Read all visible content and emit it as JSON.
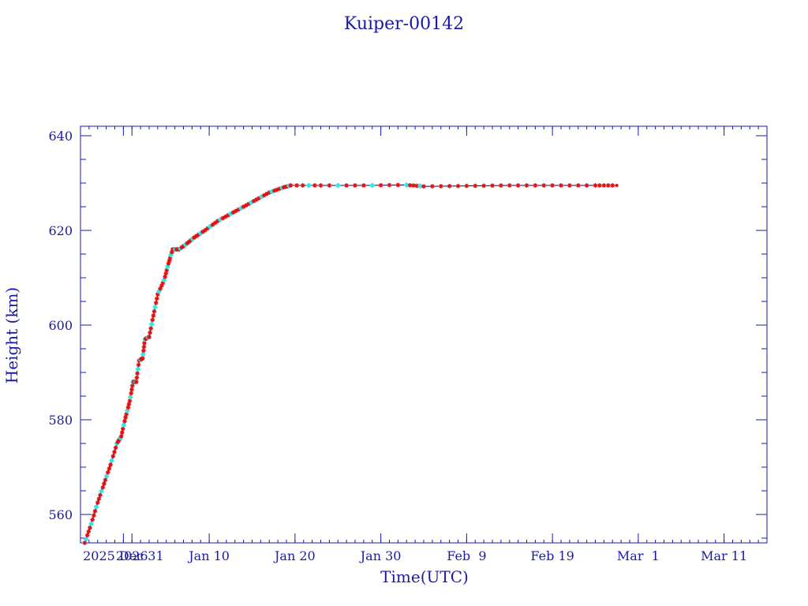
{
  "chart_data": {
    "type": "line",
    "title": "Kuiper-00142",
    "xlabel": "Time(UTC)",
    "ylabel": "Height (km)",
    "x_axis_type": "date",
    "xlim": [
      "2025-12-26",
      "2026-03-16"
    ],
    "ylim": [
      554,
      642
    ],
    "x_ticks": [
      "2025-12-31",
      "2026-01-01",
      "2026-01-10",
      "2026-01-20",
      "2026-01-30",
      "2026-02-09",
      "2026-02-19",
      "2026-03-01",
      "2026-03-11"
    ],
    "x_tick_labels": [
      "2025 Dec 31",
      "2026",
      "Jan 10",
      "Jan 20",
      "Jan 30",
      "Feb  9",
      "Feb 19",
      "Mar  1",
      "Mar 11"
    ],
    "y_ticks": [
      560,
      580,
      600,
      620,
      640
    ],
    "y_tick_labels": [
      "560",
      "580",
      "600",
      "620",
      "640"
    ],
    "y_minor_step": 5,
    "grid": false,
    "colors": {
      "axes": "#1a1aa8",
      "line": "#00007a",
      "marker_primary": "#e01010",
      "marker_secondary": "#33e6e6"
    },
    "series": [
      {
        "values": [
          [
            "2025-12-26T12:00",
            554.0
          ],
          [
            "2025-12-27T06:00",
            558.0
          ],
          [
            "2025-12-28T00:00",
            562.5
          ],
          [
            "2025-12-28T18:00",
            566.5
          ],
          [
            "2025-12-29T12:00",
            570.5
          ],
          [
            "2025-12-30T06:00",
            575.0
          ],
          [
            "2025-12-30T18:00",
            576.5
          ],
          [
            "2025-12-31T06:00",
            580.5
          ],
          [
            "2025-12-31T18:00",
            584.0
          ],
          [
            "2026-01-01T03:00",
            588.0
          ],
          [
            "2026-01-01T12:00",
            588.0
          ],
          [
            "2026-01-01T20:00",
            592.5
          ],
          [
            "2026-01-02T06:00",
            593.0
          ],
          [
            "2026-01-02T12:00",
            597.0
          ],
          [
            "2026-01-03T00:00",
            597.5
          ],
          [
            "2026-01-03T12:00",
            602.0
          ],
          [
            "2026-01-04T00:00",
            606.5
          ],
          [
            "2026-01-04T18:00",
            609.5
          ],
          [
            "2026-01-05T06:00",
            613.0
          ],
          [
            "2026-01-05T18:00",
            616.0
          ],
          [
            "2026-01-06T12:00",
            616.0
          ],
          [
            "2026-01-07T06:00",
            617.0
          ],
          [
            "2026-01-08T06:00",
            618.5
          ],
          [
            "2026-01-09T12:00",
            620.0
          ],
          [
            "2026-01-11T00:00",
            622.0
          ],
          [
            "2026-01-12T12:00",
            623.5
          ],
          [
            "2026-01-14T00:00",
            625.0
          ],
          [
            "2026-01-15T12:00",
            626.5
          ],
          [
            "2026-01-17T00:00",
            628.0
          ],
          [
            "2026-01-18T12:00",
            629.0
          ],
          [
            "2026-01-19T12:00",
            629.5
          ],
          [
            "2026-01-23T00:00",
            629.5
          ],
          [
            "2026-01-28T00:00",
            629.5
          ],
          [
            "2026-02-02T00:00",
            629.6
          ],
          [
            "2026-02-04T00:00",
            629.3
          ],
          [
            "2026-02-09T00:00",
            629.4
          ],
          [
            "2026-02-14T00:00",
            629.5
          ],
          [
            "2026-02-19T00:00",
            629.5
          ],
          [
            "2026-02-24T00:00",
            629.5
          ],
          [
            "2026-02-26T12:00",
            629.5
          ]
        ]
      }
    ]
  }
}
